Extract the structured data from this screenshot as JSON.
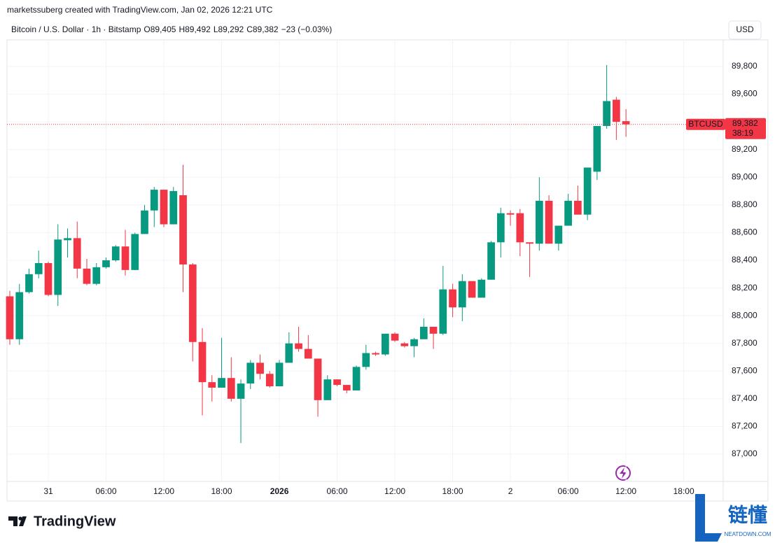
{
  "header": "marketssuberg created with TradingView.com, Jan 02, 2026 12:21 UTC",
  "currency_button": "USD",
  "brand": "TradingView",
  "watermark": {
    "title": "链懂",
    "site": "NEATDOWN.COM"
  },
  "chart_data": {
    "type": "candlestick",
    "symbol_title": "Bitcoin / U.S. Dollar · 1h · Bitstamp",
    "legend": [
      {
        "key": "O",
        "value": "89,405"
      },
      {
        "key": "H",
        "value": "89,492"
      },
      {
        "key": "L",
        "value": "89,292"
      },
      {
        "key": "C",
        "value": "89,382"
      }
    ],
    "change": "−23 (−0.03%)",
    "price_label": {
      "symbol": "BTCUSD",
      "price": "89,382",
      "countdown": "38:19"
    },
    "up_color": "#089981",
    "down_color": "#f23645",
    "grid": true,
    "x": [
      0,
      1,
      2,
      3,
      4,
      5,
      6,
      7,
      8,
      9,
      10,
      11,
      12,
      13,
      14,
      15,
      16,
      17,
      18,
      19,
      20,
      21,
      22,
      23,
      24,
      25,
      26,
      27,
      28,
      29,
      30,
      31,
      32,
      33,
      34,
      35,
      36,
      37,
      38,
      39,
      40,
      41,
      42,
      43,
      44,
      45,
      46,
      47,
      48,
      49,
      50,
      51,
      52,
      53,
      54,
      55,
      56,
      57,
      58,
      59,
      60,
      61,
      62,
      63,
      64
    ],
    "open": [
      88140,
      87830,
      88170,
      88300,
      88380,
      88150,
      88545,
      88560,
      88340,
      88230,
      88350,
      88400,
      88500,
      88330,
      88590,
      88760,
      88910,
      88660,
      88870,
      88370,
      87810,
      87520,
      87480,
      87550,
      87400,
      87510,
      87660,
      87580,
      87490,
      87660,
      87800,
      87760,
      87690,
      87390,
      87540,
      87500,
      87460,
      87630,
      87730,
      87720,
      87870,
      87800,
      87780,
      87830,
      87920,
      87870,
      88190,
      88060,
      88250,
      88130,
      88260,
      88530,
      88740,
      88740,
      88530,
      88520,
      88830,
      88520,
      88650,
      88830,
      88730,
      89040,
      89370,
      89560,
      89405
    ],
    "high": [
      88180,
      88230,
      88340,
      88470,
      88390,
      88660,
      88630,
      88680,
      88410,
      88380,
      88420,
      88510,
      88620,
      88600,
      88800,
      88930,
      88910,
      88930,
      89090,
      88380,
      87910,
      87570,
      87840,
      87700,
      87540,
      87680,
      87720,
      87600,
      87680,
      87880,
      87920,
      87860,
      87690,
      87570,
      87540,
      87500,
      87640,
      87790,
      87740,
      87870,
      87880,
      87810,
      87840,
      87980,
      87920,
      88360,
      88230,
      88300,
      88250,
      88270,
      88540,
      88780,
      88760,
      88770,
      88530,
      89000,
      88870,
      88650,
      88880,
      88940,
      89070,
      89370,
      89810,
      89580,
      89492
    ],
    "low": [
      87790,
      87790,
      88160,
      88270,
      88140,
      88070,
      88420,
      88270,
      88220,
      88220,
      88340,
      88390,
      88290,
      88330,
      88590,
      88640,
      88640,
      88660,
      88170,
      87670,
      87280,
      87380,
      87480,
      87380,
      87080,
      87470,
      87540,
      87480,
      87490,
      87660,
      87740,
      87690,
      87270,
      87390,
      87490,
      87440,
      87460,
      87610,
      87710,
      87710,
      87810,
      87770,
      87700,
      87830,
      87760,
      87860,
      87990,
      87960,
      88130,
      88130,
      88260,
      88420,
      88650,
      88430,
      88280,
      88470,
      88520,
      88470,
      88650,
      88730,
      88690,
      88980,
      89350,
      89270,
      89292
    ],
    "close": [
      87830,
      88170,
      88300,
      88380,
      88150,
      88550,
      88560,
      88340,
      88230,
      88350,
      88400,
      88500,
      88330,
      88590,
      88760,
      88910,
      88660,
      88900,
      88370,
      87810,
      87520,
      87480,
      87550,
      87400,
      87510,
      87660,
      87580,
      87490,
      87660,
      87800,
      87760,
      87690,
      87390,
      87540,
      87500,
      87460,
      87630,
      87730,
      87720,
      87870,
      87820,
      87780,
      87830,
      87920,
      87870,
      88190,
      88060,
      88250,
      88130,
      88260,
      88530,
      88740,
      88730,
      88530,
      88520,
      88830,
      88520,
      88650,
      88830,
      88730,
      89070,
      89370,
      89550,
      89400,
      89382
    ],
    "xlim": [
      -0.29,
      74.1
    ],
    "xticks": [
      {
        "value": 4,
        "label": "31"
      },
      {
        "value": 10,
        "label": "06:00"
      },
      {
        "value": 16,
        "label": "12:00"
      },
      {
        "value": 22,
        "label": "18:00"
      },
      {
        "value": 28,
        "label": "2026"
      },
      {
        "value": 34,
        "label": "06:00"
      },
      {
        "value": 40,
        "label": "12:00"
      },
      {
        "value": 46,
        "label": "18:00"
      },
      {
        "value": 52,
        "label": "2"
      },
      {
        "value": 58,
        "label": "06:00"
      },
      {
        "value": 64,
        "label": "12:00"
      },
      {
        "value": 70,
        "label": "18:00"
      }
    ],
    "ylim": [
      86803,
      89992
    ],
    "yticks": [
      {
        "value": 87000,
        "label": "87,000"
      },
      {
        "value": 87200,
        "label": "87,200"
      },
      {
        "value": 87400,
        "label": "87,400"
      },
      {
        "value": 87600,
        "label": "87,600"
      },
      {
        "value": 87800,
        "label": "87,800"
      },
      {
        "value": 88000,
        "label": "88,000"
      },
      {
        "value": 88200,
        "label": "88,200"
      },
      {
        "value": 88400,
        "label": "88,400"
      },
      {
        "value": 88600,
        "label": "88,600"
      },
      {
        "value": 88800,
        "label": "88,800"
      },
      {
        "value": 89000,
        "label": "89,000"
      },
      {
        "value": 89200,
        "label": "89,200"
      },
      {
        "value": 89400,
        "label": "89,400"
      },
      {
        "value": 89600,
        "label": "89,600"
      },
      {
        "value": 89800,
        "label": "89,800"
      }
    ]
  }
}
